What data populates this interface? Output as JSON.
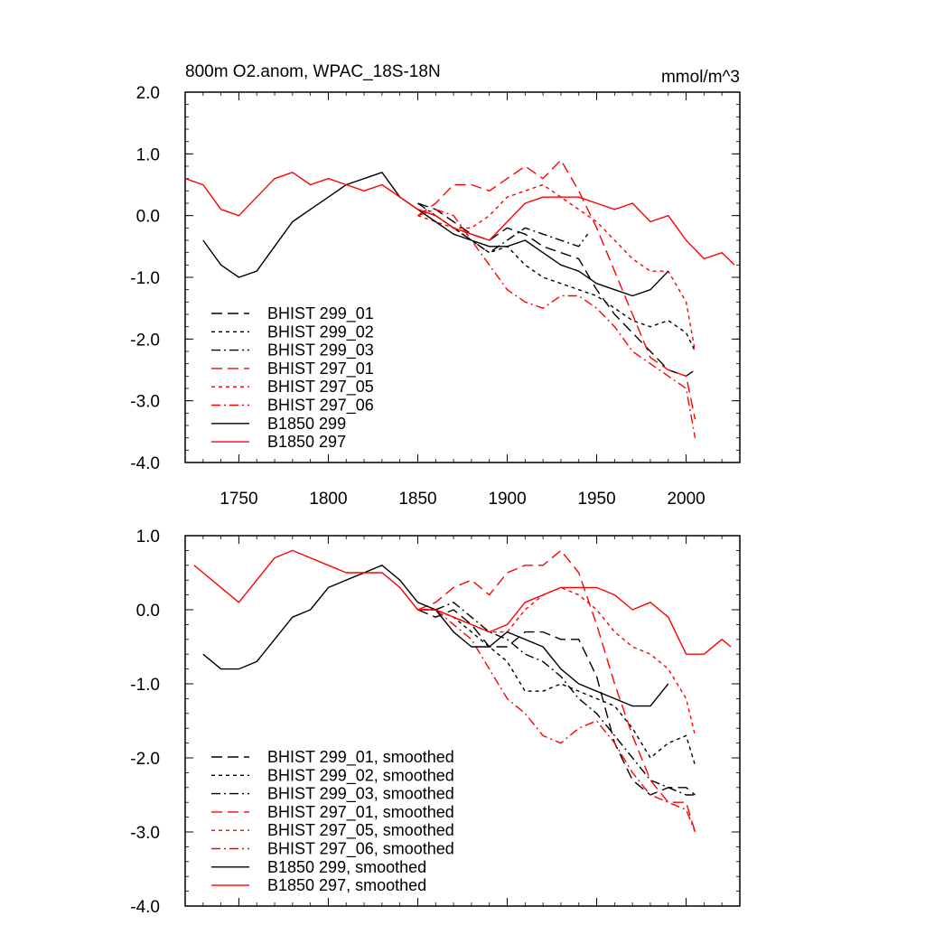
{
  "chart_data": [
    {
      "type": "line",
      "title": "800m O2.anom, WPAC_18S-18N",
      "units": "mmol/m^3",
      "xlim": [
        1720,
        2030
      ],
      "ylim": [
        -4.0,
        2.0
      ],
      "xticks": [
        1750,
        1800,
        1850,
        1900,
        1950,
        2000
      ],
      "xtick_labels": [
        "1750",
        "1800",
        "1850",
        "1900",
        "1950",
        "2000"
      ],
      "yticks": [
        -4.0,
        -3.0,
        -2.0,
        -1.0,
        0.0,
        1.0,
        2.0
      ],
      "ytick_labels": [
        "-4.0",
        "-3.0",
        "-2.0",
        "-1.0",
        "0.0",
        "1.0",
        "2.0"
      ],
      "legend_position": "bottom-left",
      "series": [
        {
          "name": "BHIST 299_01",
          "color": "#000000",
          "dash": "long-dash",
          "x": [
            1850,
            1860,
            1870,
            1880,
            1890,
            1900,
            1910,
            1920,
            1930,
            1940,
            1950,
            1960,
            1970,
            1980,
            1990,
            2000,
            2005
          ],
          "y": [
            0.2,
            0.1,
            -0.1,
            -0.3,
            -0.4,
            -0.2,
            -0.3,
            -0.5,
            -0.6,
            -0.7,
            -1.2,
            -1.6,
            -1.9,
            -2.2,
            -2.5,
            -2.6,
            -2.5
          ]
        },
        {
          "name": "BHIST 299_02",
          "color": "#000000",
          "dash": "short-dash",
          "x": [
            1850,
            1860,
            1870,
            1880,
            1890,
            1900,
            1910,
            1920,
            1930,
            1940,
            1950,
            1960,
            1970,
            1980,
            1990,
            2000,
            2005
          ],
          "y": [
            0.1,
            0.0,
            -0.2,
            -0.4,
            -0.6,
            -0.5,
            -0.8,
            -1.0,
            -1.1,
            -1.2,
            -1.3,
            -1.5,
            -1.7,
            -1.8,
            -1.7,
            -1.9,
            -2.2
          ]
        },
        {
          "name": "BHIST 299_03",
          "color": "#000000",
          "dash": "dash-dot",
          "x": [
            1850,
            1860,
            1870,
            1880,
            1890,
            1900,
            1910,
            1920,
            1930,
            1940,
            1945
          ],
          "y": [
            0.2,
            0.0,
            -0.2,
            -0.4,
            -0.6,
            -0.4,
            -0.2,
            -0.3,
            -0.4,
            -0.5,
            -0.3
          ]
        },
        {
          "name": "BHIST 297_01",
          "color": "#ff0000",
          "dash": "long-dash",
          "x": [
            1850,
            1860,
            1870,
            1880,
            1890,
            1900,
            1910,
            1920,
            1930,
            1940,
            1950,
            1960,
            1970,
            1980,
            1990,
            2000,
            2005
          ],
          "y": [
            0.0,
            0.2,
            0.5,
            0.5,
            0.4,
            0.6,
            0.8,
            0.6,
            0.9,
            0.4,
            -0.2,
            -0.9,
            -1.6,
            -2.3,
            -2.5,
            -2.6,
            -3.3
          ]
        },
        {
          "name": "BHIST 297_05",
          "color": "#ff0000",
          "dash": "short-dash",
          "x": [
            1850,
            1860,
            1870,
            1880,
            1890,
            1900,
            1910,
            1920,
            1930,
            1940,
            1950,
            1960,
            1970,
            1980,
            1990,
            2000,
            2005
          ],
          "y": [
            0.0,
            -0.1,
            -0.2,
            -0.2,
            0.0,
            0.3,
            0.4,
            0.5,
            0.3,
            0.1,
            -0.1,
            -0.4,
            -0.7,
            -0.9,
            -0.9,
            -1.4,
            -2.2
          ]
        },
        {
          "name": "BHIST 297_06",
          "color": "#ff0000",
          "dash": "dash-dot",
          "x": [
            1850,
            1860,
            1870,
            1880,
            1890,
            1900,
            1910,
            1920,
            1930,
            1940,
            1950,
            1960,
            1970,
            1980,
            1990,
            2000,
            2005
          ],
          "y": [
            0.0,
            0.1,
            0.0,
            -0.4,
            -0.8,
            -1.2,
            -1.4,
            -1.5,
            -1.3,
            -1.3,
            -1.5,
            -1.8,
            -2.2,
            -2.4,
            -2.6,
            -2.8,
            -3.6
          ]
        },
        {
          "name": "B1850 299",
          "color": "#000000",
          "dash": "solid",
          "x": [
            1730,
            1740,
            1750,
            1760,
            1770,
            1780,
            1790,
            1800,
            1810,
            1820,
            1830,
            1840,
            1850,
            1860,
            1870,
            1880,
            1890,
            1900,
            1910,
            1920,
            1930,
            1940,
            1950,
            1960,
            1970,
            1980,
            1990
          ],
          "y": [
            -0.4,
            -0.8,
            -1.0,
            -0.9,
            -0.5,
            -0.1,
            0.1,
            0.3,
            0.5,
            0.6,
            0.7,
            0.3,
            0.1,
            -0.1,
            -0.3,
            -0.4,
            -0.5,
            -0.5,
            -0.4,
            -0.6,
            -0.8,
            -0.9,
            -1.1,
            -1.2,
            -1.3,
            -1.2,
            -0.9
          ]
        },
        {
          "name": "B1850 297",
          "color": "#ff0000",
          "dash": "solid",
          "x": [
            1720,
            1730,
            1740,
            1750,
            1760,
            1770,
            1780,
            1790,
            1800,
            1810,
            1820,
            1830,
            1840,
            1850,
            1860,
            1870,
            1880,
            1890,
            1900,
            1910,
            1920,
            1930,
            1940,
            1950,
            1960,
            1970,
            1980,
            1990,
            2000,
            2010,
            2020,
            2027
          ],
          "y": [
            0.6,
            0.5,
            0.1,
            0.0,
            0.3,
            0.6,
            0.7,
            0.5,
            0.6,
            0.5,
            0.4,
            0.5,
            0.3,
            0.1,
            0.0,
            -0.2,
            -0.3,
            -0.4,
            -0.1,
            0.2,
            0.3,
            0.3,
            0.3,
            0.2,
            0.1,
            0.2,
            -0.1,
            0.0,
            -0.4,
            -0.7,
            -0.6,
            -0.8
          ]
        }
      ]
    },
    {
      "type": "line",
      "title": "",
      "xlim": [
        1720,
        2030
      ],
      "ylim": [
        -4.0,
        1.0
      ],
      "xticks": [
        1750,
        1800,
        1850,
        1900,
        1950,
        2000
      ],
      "yticks": [
        -4.0,
        -3.0,
        -2.0,
        -1.0,
        0.0,
        1.0
      ],
      "ytick_labels": [
        "-4.0",
        "-3.0",
        "-2.0",
        "-1.0",
        "0.0",
        "1.0"
      ],
      "legend_position": "bottom-left",
      "series": [
        {
          "name": "BHIST 299_01, smoothed",
          "color": "#000000",
          "dash": "long-dash",
          "x": [
            1850,
            1860,
            1870,
            1880,
            1890,
            1900,
            1910,
            1920,
            1930,
            1940,
            1950,
            1960,
            1970,
            1980,
            1990,
            2000,
            2005
          ],
          "y": [
            0.0,
            -0.1,
            0.0,
            -0.2,
            -0.5,
            -0.5,
            -0.3,
            -0.3,
            -0.4,
            -0.4,
            -0.9,
            -1.8,
            -2.3,
            -2.5,
            -2.4,
            -2.4,
            -2.5
          ]
        },
        {
          "name": "BHIST 299_02, smoothed",
          "color": "#000000",
          "dash": "short-dash",
          "x": [
            1850,
            1860,
            1870,
            1880,
            1890,
            1900,
            1910,
            1920,
            1930,
            1940,
            1950,
            1960,
            1970,
            1980,
            1990,
            2000,
            2005
          ],
          "y": [
            0.0,
            0.0,
            -0.1,
            -0.3,
            -0.5,
            -0.7,
            -1.1,
            -1.1,
            -1.0,
            -1.1,
            -1.2,
            -1.3,
            -1.6,
            -2.0,
            -1.8,
            -1.7,
            -2.1
          ]
        },
        {
          "name": "BHIST 299_03, smoothed",
          "color": "#000000",
          "dash": "dash-dot",
          "x": [
            1850,
            1860,
            1870,
            1880,
            1890,
            1900,
            1910,
            1920,
            1930,
            1940,
            1950,
            1960,
            1970,
            1980,
            1990,
            2000,
            2005
          ],
          "y": [
            0.0,
            0.0,
            0.1,
            -0.1,
            -0.3,
            -0.4,
            -0.6,
            -0.7,
            -0.9,
            -1.2,
            -1.4,
            -1.7,
            -2.0,
            -2.3,
            -2.4,
            -2.5,
            -2.5
          ]
        },
        {
          "name": "BHIST 297_01, smoothed",
          "color": "#ff0000",
          "dash": "long-dash",
          "x": [
            1850,
            1860,
            1870,
            1880,
            1890,
            1900,
            1910,
            1920,
            1930,
            1940,
            1950,
            1960,
            1970,
            1980,
            1990,
            2000,
            2005
          ],
          "y": [
            0.0,
            0.1,
            0.3,
            0.4,
            0.2,
            0.5,
            0.6,
            0.6,
            0.8,
            0.5,
            -0.2,
            -1.0,
            -1.7,
            -2.3,
            -2.6,
            -2.6,
            -3.0
          ]
        },
        {
          "name": "BHIST 297_05, smoothed",
          "color": "#ff0000",
          "dash": "short-dash",
          "x": [
            1850,
            1860,
            1870,
            1880,
            1890,
            1900,
            1910,
            1920,
            1930,
            1940,
            1950,
            1960,
            1970,
            1980,
            1990,
            2000,
            2005
          ],
          "y": [
            0.0,
            0.0,
            -0.1,
            -0.2,
            -0.3,
            -0.3,
            0.0,
            0.2,
            0.3,
            0.2,
            0.0,
            -0.3,
            -0.5,
            -0.6,
            -0.8,
            -1.2,
            -1.7
          ]
        },
        {
          "name": "BHIST 297_06, smoothed",
          "color": "#ff0000",
          "dash": "dash-dot",
          "x": [
            1850,
            1860,
            1870,
            1880,
            1890,
            1900,
            1910,
            1920,
            1930,
            1940,
            1950,
            1960,
            1970,
            1980,
            1990,
            2000,
            2005
          ],
          "y": [
            0.0,
            0.0,
            -0.2,
            -0.4,
            -0.8,
            -1.2,
            -1.4,
            -1.7,
            -1.8,
            -1.6,
            -1.5,
            -1.8,
            -2.2,
            -2.5,
            -2.6,
            -2.7,
            -3.0
          ]
        },
        {
          "name": "B1850 299, smoothed",
          "color": "#000000",
          "dash": "solid",
          "x": [
            1730,
            1740,
            1750,
            1760,
            1770,
            1780,
            1790,
            1800,
            1810,
            1820,
            1830,
            1840,
            1850,
            1860,
            1870,
            1880,
            1890,
            1900,
            1910,
            1920,
            1930,
            1940,
            1950,
            1960,
            1970,
            1980,
            1990
          ],
          "y": [
            -0.6,
            -0.8,
            -0.8,
            -0.7,
            -0.4,
            -0.1,
            0.0,
            0.3,
            0.4,
            0.5,
            0.6,
            0.4,
            0.1,
            0.0,
            -0.3,
            -0.5,
            -0.5,
            -0.3,
            -0.4,
            -0.5,
            -0.8,
            -1.0,
            -1.1,
            -1.2,
            -1.3,
            -1.3,
            -1.0
          ]
        },
        {
          "name": "B1850 297, smoothed",
          "color": "#ff0000",
          "dash": "solid",
          "x": [
            1725,
            1730,
            1740,
            1750,
            1760,
            1770,
            1780,
            1790,
            1800,
            1810,
            1820,
            1830,
            1840,
            1850,
            1860,
            1870,
            1880,
            1890,
            1900,
            1910,
            1920,
            1930,
            1940,
            1950,
            1960,
            1970,
            1980,
            1990,
            2000,
            2010,
            2020,
            2025
          ],
          "y": [
            0.6,
            0.5,
            0.3,
            0.1,
            0.4,
            0.7,
            0.8,
            0.7,
            0.6,
            0.5,
            0.5,
            0.5,
            0.3,
            0.0,
            0.0,
            -0.1,
            -0.2,
            -0.3,
            -0.2,
            0.1,
            0.2,
            0.3,
            0.3,
            0.3,
            0.2,
            0.0,
            0.1,
            -0.1,
            -0.6,
            -0.6,
            -0.4,
            -0.5
          ]
        }
      ]
    }
  ]
}
